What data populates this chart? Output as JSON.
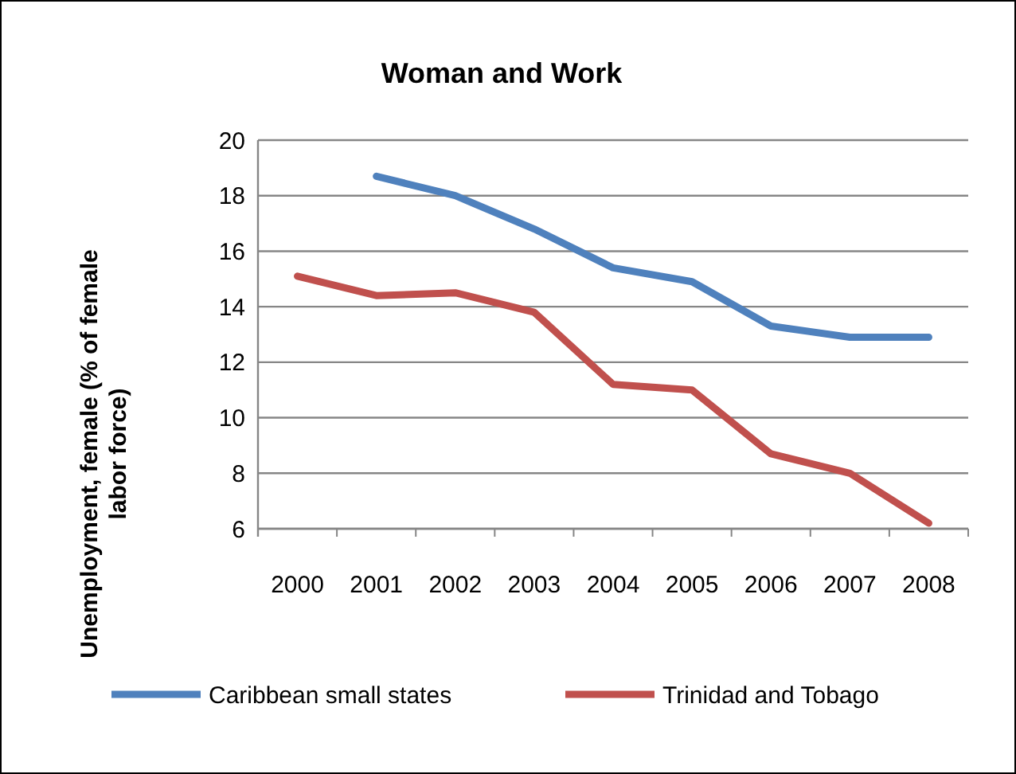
{
  "chart_data": {
    "type": "line",
    "title": "Woman and Work",
    "ylabel": "Unemployment, female (% of female labor force)",
    "categories": [
      "2000",
      "2001",
      "2002",
      "2003",
      "2004",
      "2005",
      "2006",
      "2007",
      "2008"
    ],
    "series": [
      {
        "name": "Caribbean small states",
        "color": "#4f81bd",
        "values": [
          null,
          18.7,
          18.0,
          16.8,
          15.4,
          14.9,
          13.3,
          12.9,
          12.9
        ]
      },
      {
        "name": "Trinidad and Tobago",
        "color": "#c0504d",
        "values": [
          15.1,
          14.4,
          14.5,
          13.8,
          11.2,
          11.0,
          8.7,
          8.0,
          6.2
        ]
      }
    ],
    "ylim": [
      6,
      20
    ],
    "yticks": [
      6,
      8,
      10,
      12,
      14,
      16,
      18,
      20
    ],
    "grid": "y",
    "legend": "bottom",
    "marker": "none",
    "line_style": "solid"
  }
}
